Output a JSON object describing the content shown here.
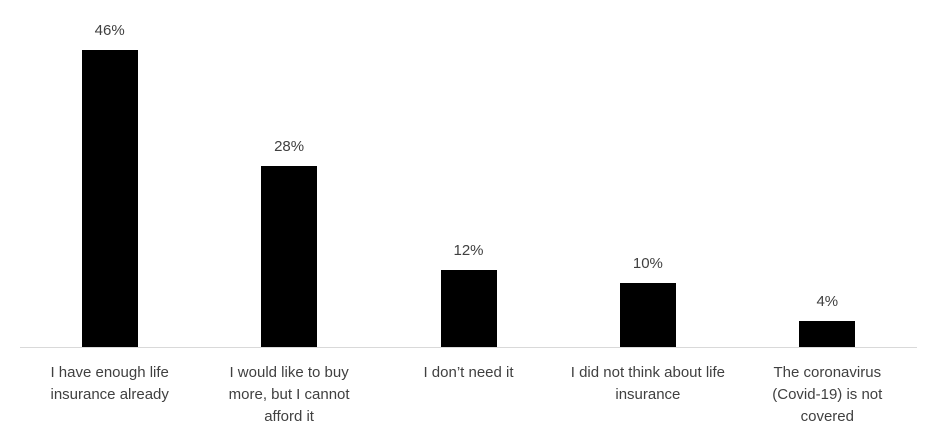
{
  "chart_data": {
    "type": "bar",
    "categories": [
      "I have enough life insurance already",
      "I would like to buy more, but I cannot afford it",
      "I don’t need it",
      "I did not think about life insurance",
      "The coronavirus (Covid-19) is not covered"
    ],
    "values": [
      46,
      28,
      12,
      10,
      4
    ],
    "value_labels": [
      "46%",
      "28%",
      "12%",
      "10%",
      "4%"
    ],
    "color": "#000000"
  }
}
